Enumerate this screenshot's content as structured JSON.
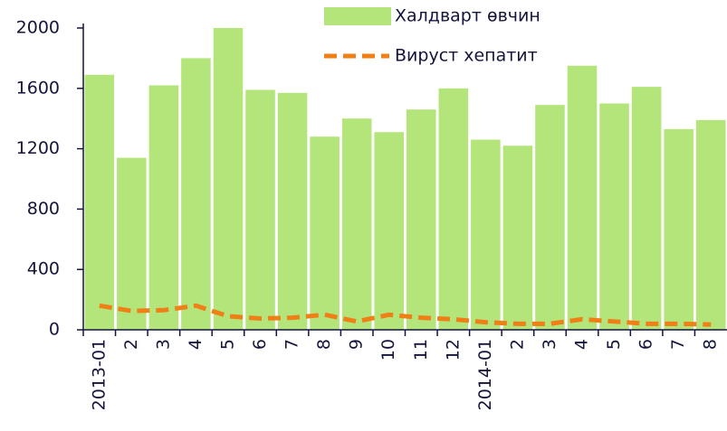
{
  "chart_data": {
    "type": "bar_line",
    "categories": [
      "2013-01",
      "2",
      "3",
      "4",
      "5",
      "6",
      "7",
      "8",
      "9",
      "10",
      "11",
      "12",
      "2014-01",
      "2",
      "3",
      "4",
      "5",
      "6",
      "7",
      "8"
    ],
    "series": [
      {
        "name": "Халдварт өвчин",
        "type": "bar",
        "color": "#b3e57b",
        "values": [
          1690,
          1140,
          1620,
          1800,
          2000,
          1590,
          1570,
          1280,
          1400,
          1310,
          1460,
          1600,
          1260,
          1220,
          1490,
          1750,
          1500,
          1610,
          1330,
          1390
        ]
      },
      {
        "name": "Вируст хепатит",
        "type": "line",
        "dashed": true,
        "color": "#f07f16",
        "values": [
          160,
          125,
          130,
          160,
          90,
          75,
          80,
          100,
          55,
          100,
          80,
          70,
          50,
          40,
          40,
          70,
          55,
          40,
          40,
          35
        ]
      }
    ],
    "ylim": [
      0,
      2000
    ],
    "yticks": [
      0,
      400,
      800,
      1200,
      1600,
      2000
    ],
    "grid": false
  }
}
